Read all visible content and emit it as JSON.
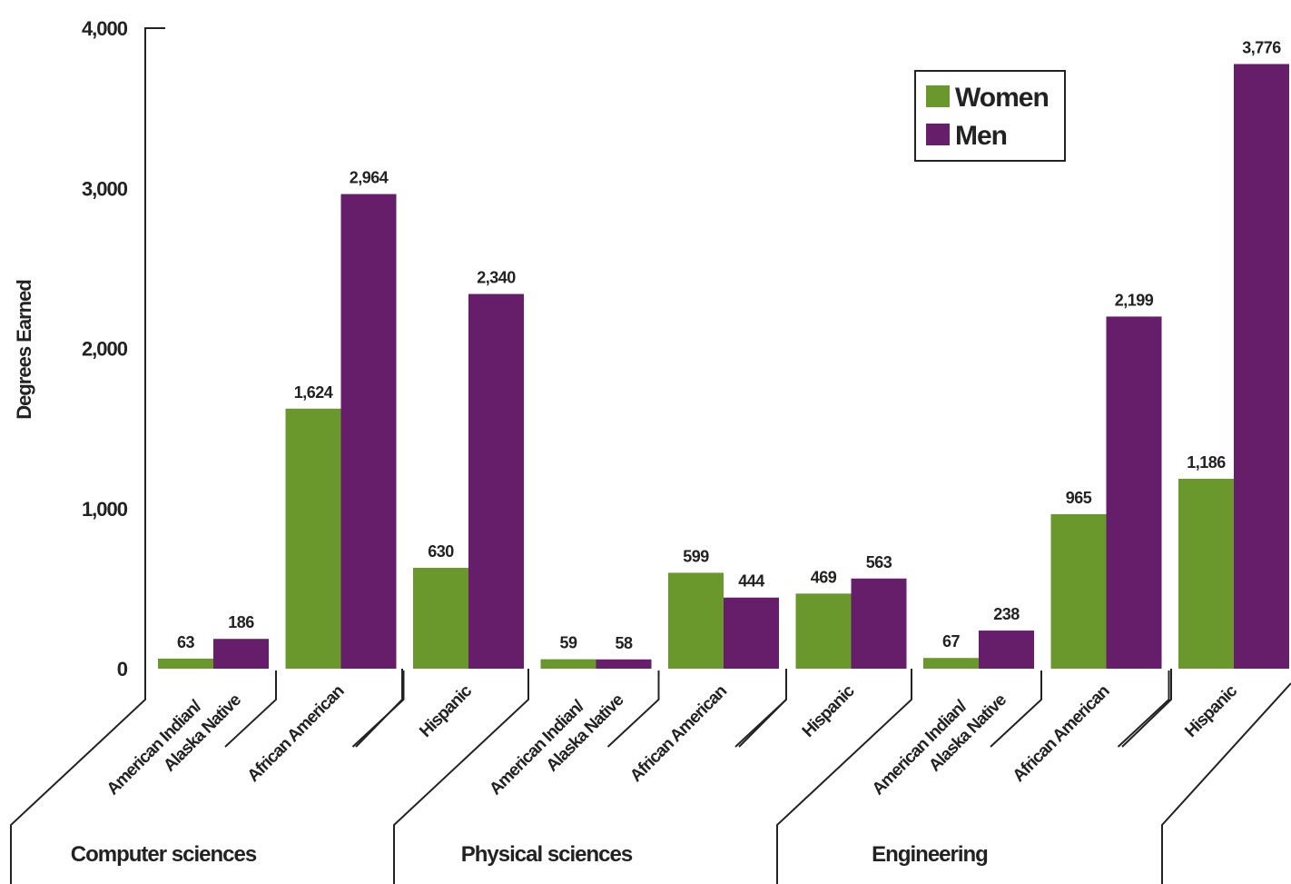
{
  "chart_data": {
    "type": "bar",
    "ylabel": "Degrees Earned",
    "ylim": [
      0,
      4000
    ],
    "yticks": [
      {
        "value": 0,
        "label": "0"
      },
      {
        "value": 1000,
        "label": "1,000"
      },
      {
        "value": 2000,
        "label": "2,000"
      },
      {
        "value": 3000,
        "label": "3,000"
      },
      {
        "value": 4000,
        "label": "4,000"
      }
    ],
    "legend": {
      "position": "top-right"
    },
    "colors": {
      "Women": "#6b982d",
      "Men": "#661e6b"
    },
    "groups": [
      {
        "name": "Computer sciences",
        "categories": [
          {
            "label": [
              "American Indian/",
              "Alaska Native"
            ],
            "women": 63,
            "women_label": "63",
            "men": 186,
            "men_label": "186"
          },
          {
            "label": [
              "African American"
            ],
            "women": 1624,
            "women_label": "1,624",
            "men": 2964,
            "men_label": "2,964"
          },
          {
            "label": [
              "Hispanic"
            ],
            "women": 630,
            "women_label": "630",
            "men": 2340,
            "men_label": "2,340"
          }
        ]
      },
      {
        "name": "Physical sciences",
        "categories": [
          {
            "label": [
              "American Indian/",
              "Alaska Native"
            ],
            "women": 59,
            "women_label": "59",
            "men": 58,
            "men_label": "58"
          },
          {
            "label": [
              "African American"
            ],
            "women": 599,
            "women_label": "599",
            "men": 444,
            "men_label": "444"
          },
          {
            "label": [
              "Hispanic"
            ],
            "women": 469,
            "women_label": "469",
            "men": 563,
            "men_label": "563"
          }
        ]
      },
      {
        "name": "Engineering",
        "categories": [
          {
            "label": [
              "American Indian/",
              "Alaska Native"
            ],
            "women": 67,
            "women_label": "67",
            "men": 238,
            "men_label": "238"
          },
          {
            "label": [
              "African American"
            ],
            "women": 965,
            "women_label": "965",
            "men": 2199,
            "men_label": "2,199"
          },
          {
            "label": [
              "Hispanic"
            ],
            "women": 1186,
            "women_label": "1,186",
            "men": 3776,
            "men_label": "3,776"
          }
        ]
      }
    ],
    "series": [
      {
        "name": "Women",
        "key": "women"
      },
      {
        "name": "Men",
        "key": "men"
      }
    ]
  }
}
